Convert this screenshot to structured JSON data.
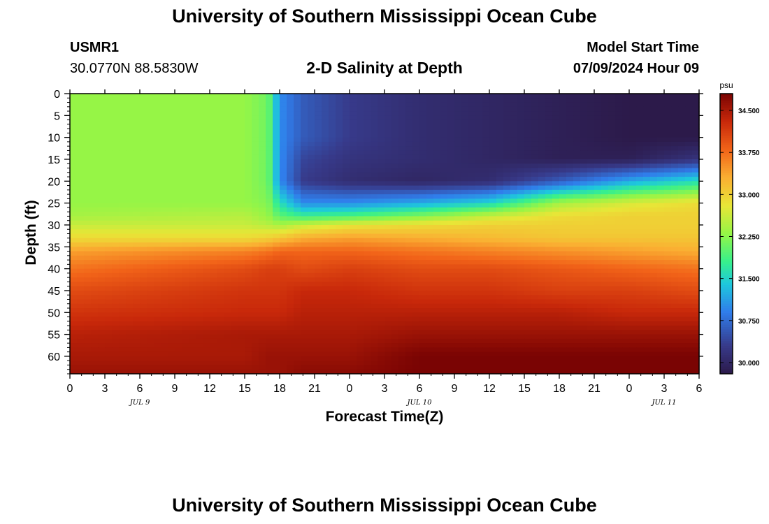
{
  "header": {
    "title": "University of Southern Mississippi Ocean Cube",
    "station_id": "USMR1",
    "station_coords": "30.0770N  88.5830W",
    "subtitle": "2-D Salinity at Depth",
    "model_start_label": "Model Start Time",
    "model_start_value": "07/09/2024 Hour 09"
  },
  "footer": {
    "title": "University of Southern Mississippi Ocean Cube"
  },
  "colors": {
    "fresh": "#2c1a4a",
    "mid": "#3cf08a",
    "salty": "#7a0403"
  },
  "chart_data": {
    "type": "heatmap",
    "xlabel": "Forecast Time(Z)",
    "ylabel": "Depth (ft)",
    "colorbar_unit": "psu",
    "x_range_hours": [
      0,
      54
    ],
    "y_range_ft": [
      0,
      64
    ],
    "x_tick_labels": [
      "0",
      "3",
      "6",
      "9",
      "12",
      "15",
      "18",
      "21",
      "0",
      "3",
      "6",
      "9",
      "12",
      "15",
      "18",
      "21",
      "0",
      "3",
      "6"
    ],
    "y_ticks": [
      0,
      5,
      10,
      15,
      20,
      25,
      30,
      35,
      40,
      45,
      50,
      55,
      60
    ],
    "date_labels": [
      {
        "label": "JUL 9",
        "at_tick": 2
      },
      {
        "label": "JUL 10",
        "at_tick": 10
      },
      {
        "label": "JUL 11",
        "at_tick": 17
      }
    ],
    "colorbar_range": [
      29.8,
      34.8
    ],
    "colorbar_ticks": [
      "34.500",
      "33.750",
      "33.000",
      "32.250",
      "31.500",
      "30.750",
      "30.000"
    ],
    "colorbar_tick_values": [
      34.5,
      33.75,
      33.0,
      32.25,
      31.5,
      30.75,
      30.0
    ],
    "depths_ft": [
      0,
      10,
      15,
      20,
      25,
      28,
      30,
      33,
      36,
      40,
      45,
      50,
      55,
      60,
      64
    ],
    "times_hours": [
      0,
      15,
      17,
      18,
      20,
      24,
      30,
      36,
      42,
      48,
      54
    ],
    "salinity_psu": [
      [
        32.3,
        32.3,
        32.1,
        31.0,
        30.6,
        30.3,
        30.1,
        30.0,
        29.9,
        29.8,
        29.8
      ],
      [
        32.3,
        32.3,
        32.1,
        31.0,
        30.6,
        30.3,
        30.1,
        30.0,
        29.9,
        29.8,
        29.8
      ],
      [
        32.3,
        32.3,
        32.1,
        31.0,
        30.4,
        30.2,
        30.1,
        30.0,
        29.9,
        29.9,
        30.2
      ],
      [
        32.3,
        32.3,
        32.1,
        31.0,
        30.3,
        30.1,
        30.0,
        30.1,
        30.6,
        31.2,
        31.6
      ],
      [
        32.3,
        32.3,
        32.2,
        31.6,
        31.0,
        31.0,
        31.2,
        31.5,
        32.4,
        32.7,
        32.9
      ],
      [
        32.4,
        32.5,
        32.3,
        32.0,
        31.8,
        31.9,
        32.2,
        32.6,
        32.9,
        33.0,
        33.0
      ],
      [
        32.6,
        32.6,
        32.5,
        32.4,
        32.6,
        32.8,
        32.9,
        33.0,
        33.0,
        33.0,
        33.0
      ],
      [
        32.9,
        32.9,
        33.0,
        33.1,
        33.3,
        33.4,
        33.3,
        33.2,
        33.1,
        33.1,
        33.1
      ],
      [
        33.4,
        33.6,
        33.7,
        33.8,
        33.8,
        33.8,
        33.7,
        33.6,
        33.5,
        33.4,
        33.3
      ],
      [
        33.7,
        34.0,
        34.1,
        34.1,
        34.0,
        34.1,
        34.0,
        34.0,
        33.9,
        33.8,
        33.7
      ],
      [
        34.0,
        34.2,
        34.2,
        34.2,
        34.3,
        34.3,
        34.2,
        34.2,
        34.1,
        34.1,
        34.0
      ],
      [
        34.2,
        34.3,
        34.3,
        34.3,
        34.4,
        34.4,
        34.4,
        34.4,
        34.4,
        34.3,
        34.3
      ],
      [
        34.4,
        34.5,
        34.5,
        34.5,
        34.5,
        34.5,
        34.6,
        34.6,
        34.6,
        34.6,
        34.6
      ],
      [
        34.5,
        34.5,
        34.6,
        34.6,
        34.6,
        34.6,
        34.8,
        34.8,
        34.8,
        34.8,
        34.8
      ],
      [
        34.6,
        34.6,
        34.6,
        34.6,
        34.7,
        34.7,
        34.8,
        34.9,
        34.9,
        35.0,
        35.0
      ]
    ]
  }
}
